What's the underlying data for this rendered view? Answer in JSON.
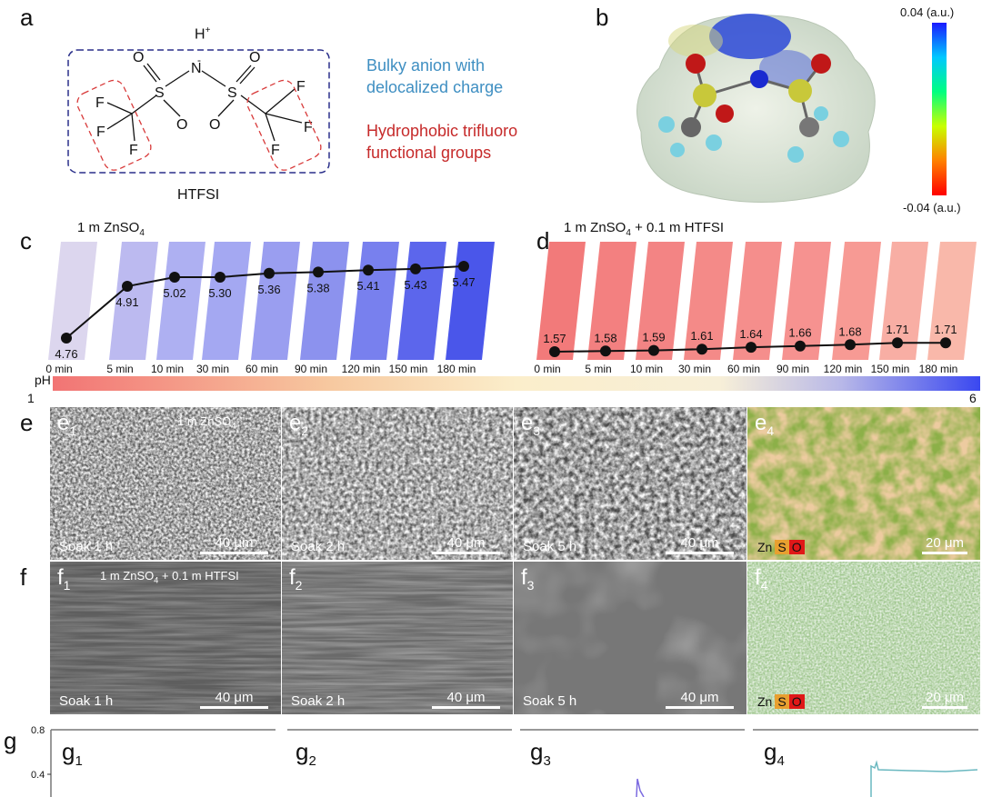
{
  "panel_a": {
    "label": "a",
    "proton": "H",
    "proton_charge": "+",
    "nitrogen_charge": "-",
    "name": "HTFSI",
    "note_blue": [
      "Bulky anion with",
      "delocalized charge"
    ],
    "note_red": [
      "Hydrophobic trifluoro",
      "functional groups"
    ],
    "colors": {
      "note_blue": "#3f8fc2",
      "note_red": "#c62a2a",
      "box": "#2a2f8a",
      "dashed_red": "#d83a3a"
    }
  },
  "panel_b": {
    "label": "b",
    "colorbar_max": "0.04 (a.u.)",
    "colorbar_min": "-0.04 (a.u.)"
  },
  "chart_data": [
    {
      "type": "line",
      "panel": "c",
      "title": "1 m ZnSO4",
      "categories": [
        "0 min",
        "5 min",
        "10 min",
        "30 min",
        "60 min",
        "90 min",
        "120 min",
        "150 min",
        "180 min"
      ],
      "values": [
        4.76,
        4.91,
        5.02,
        5.3,
        5.36,
        5.38,
        5.41,
        5.43,
        5.47
      ],
      "ylabel": "pH"
    },
    {
      "type": "line",
      "panel": "d",
      "title": "1 m ZnSO4 + 0.1 m HTFSI",
      "categories": [
        "0 min",
        "5 min",
        "10 min",
        "30 min",
        "60 min",
        "90 min",
        "120 min",
        "150 min",
        "180 min"
      ],
      "values": [
        1.57,
        1.58,
        1.59,
        1.61,
        1.64,
        1.66,
        1.68,
        1.71,
        1.71
      ],
      "ylabel": "pH"
    }
  ],
  "panel_c": {
    "label": "c",
    "title_main": "1 m ZnSO",
    "title_sub": "4",
    "values_text": [
      "4.76",
      "4.91",
      "5.02",
      "5.30",
      "5.36",
      "5.38",
      "5.41",
      "5.43",
      "5.47"
    ]
  },
  "panel_d": {
    "label": "d",
    "title_main": "1 m ZnSO",
    "title_sub": "4",
    "title_rest": " + 0.1 m HTFSI",
    "values_text": [
      "1.57",
      "1.58",
      "1.59",
      "1.61",
      "1.64",
      "1.66",
      "1.68",
      "1.71",
      "1.71"
    ]
  },
  "times": [
    "0 min",
    "5 min",
    "10 min",
    "30 min",
    "60 min",
    "90 min",
    "120 min",
    "150 min",
    "180 min"
  ],
  "ph_bar": {
    "label": "pH",
    "min": "1",
    "max": "6"
  },
  "row_e": {
    "label": "e",
    "panels": [
      {
        "sub": "e",
        "idx": "1",
        "note": "1 m ZnSO",
        "note_sub": "4",
        "soak": "Soak 1 h",
        "scale": "40 μm"
      },
      {
        "sub": "e",
        "idx": "2",
        "soak": "Soak 2 h",
        "scale": "40 μm"
      },
      {
        "sub": "e",
        "idx": "3",
        "soak": "Soak 5 h",
        "scale": "40 μm"
      },
      {
        "sub": "e",
        "idx": "4",
        "scale": "20 μm",
        "elements": [
          "Zn",
          "S",
          "O"
        ]
      }
    ]
  },
  "row_f": {
    "label": "f",
    "panels": [
      {
        "sub": "f",
        "idx": "1",
        "note": "1 m ZnSO",
        "note_sub": "4",
        "note_rest": " + 0.1 m HTFSI",
        "soak": "Soak 1 h",
        "scale": "40 μm"
      },
      {
        "sub": "f",
        "idx": "2",
        "soak": "Soak 2 h",
        "scale": "40 μm"
      },
      {
        "sub": "f",
        "idx": "3",
        "soak": "Soak 5 h",
        "scale": "40 μm"
      },
      {
        "sub": "f",
        "idx": "4",
        "scale": "20 μm",
        "elements": [
          "Zn",
          "S",
          "O"
        ]
      }
    ]
  },
  "row_g": {
    "label": "g",
    "ticks": [
      "0.8",
      "0.4"
    ],
    "panels": [
      {
        "sub": "g",
        "idx": "1"
      },
      {
        "sub": "g",
        "idx": "2"
      },
      {
        "sub": "g",
        "idx": "3"
      },
      {
        "sub": "g",
        "idx": "4"
      }
    ]
  }
}
